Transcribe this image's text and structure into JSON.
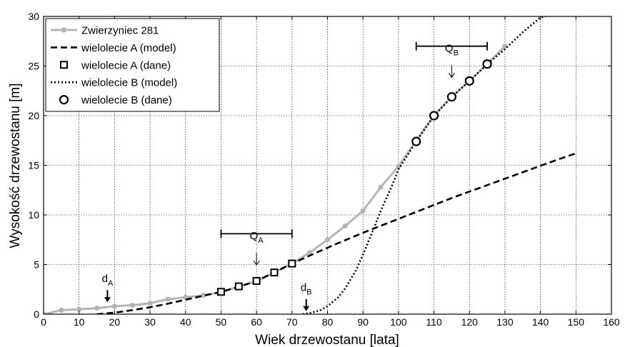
{
  "chart_data": {
    "type": "line",
    "xlabel": "Wiek drzewostanu [lata]",
    "ylabel": "Wysokość drzewostanu [m]",
    "xlim": [
      0,
      160
    ],
    "ylim": [
      0,
      30
    ],
    "xticks": [
      0,
      10,
      20,
      30,
      40,
      50,
      60,
      70,
      80,
      90,
      100,
      110,
      120,
      130,
      140,
      150,
      160
    ],
    "yticks": [
      0,
      5,
      10,
      15,
      20,
      25,
      30
    ],
    "grid": true,
    "legend_position": "top-left",
    "series": [
      {
        "name": "Zwierzyniec 281",
        "style": "solid-gray-dots",
        "color": "#b4b4b4",
        "x": [
          0,
          5,
          10,
          15,
          20,
          25,
          30,
          35,
          40,
          45,
          50,
          55,
          60,
          65,
          70,
          75,
          80,
          85,
          90,
          95,
          100,
          105,
          110,
          115,
          120,
          125,
          130
        ],
        "y": [
          0,
          0.4,
          0.5,
          0.6,
          0.8,
          0.9,
          1.1,
          1.5,
          1.7,
          1.9,
          2.2,
          2.8,
          3.3,
          4.2,
          5.1,
          6.2,
          7.5,
          8.9,
          10.4,
          12.8,
          14.9,
          17.5,
          20.0,
          21.9,
          23.5,
          25.2,
          27.0
        ]
      },
      {
        "name": "wielolecie A (model)",
        "style": "dashed",
        "color": "#000000",
        "x": [
          15,
          20,
          25,
          30,
          35,
          40,
          45,
          50,
          55,
          60,
          65,
          70,
          75,
          80,
          85,
          90,
          95,
          100,
          105,
          110,
          115,
          120,
          125,
          130,
          135,
          140,
          145,
          150
        ],
        "y": [
          0,
          0.15,
          0.4,
          0.7,
          1.05,
          1.45,
          1.85,
          2.25,
          2.75,
          3.35,
          4.2,
          5.1,
          5.9,
          6.7,
          7.45,
          8.2,
          8.9,
          9.6,
          10.3,
          11.0,
          11.7,
          12.35,
          13.0,
          13.65,
          14.3,
          14.95,
          15.6,
          16.2
        ]
      },
      {
        "name": "wielolecie A (dane)",
        "style": "square-markers",
        "color": "#000000",
        "x": [
          50,
          55,
          60,
          65,
          70
        ],
        "y": [
          2.25,
          2.8,
          3.35,
          4.2,
          5.1
        ]
      },
      {
        "name": "wielolecie B (model)",
        "style": "dotted",
        "color": "#000000",
        "x": [
          73,
          75,
          78,
          80,
          83,
          85,
          88,
          90,
          93,
          95,
          98,
          100,
          105,
          110,
          115,
          120,
          125,
          130,
          135,
          140,
          141.5
        ],
        "y": [
          0,
          0.1,
          0.4,
          0.8,
          1.7,
          2.6,
          4.4,
          6.0,
          8.6,
          10.4,
          12.8,
          14.6,
          17.4,
          20.0,
          21.9,
          23.5,
          25.2,
          26.7,
          28.4,
          29.9,
          30
        ]
      },
      {
        "name": "wielolecie B (dane)",
        "style": "circle-markers",
        "color": "#000000",
        "x": [
          105,
          110,
          115,
          120,
          125
        ],
        "y": [
          17.4,
          20.0,
          21.9,
          23.5,
          25.2
        ]
      }
    ],
    "annotations": [
      {
        "id": "QA",
        "main": "Q",
        "sub": "A",
        "range": [
          50,
          70
        ],
        "range_y": 8.1,
        "arrow_x": 60,
        "label_y": 5.6
      },
      {
        "id": "QB",
        "main": "Q",
        "sub": "B",
        "range": [
          105,
          125
        ],
        "range_y": 27.0,
        "arrow_x": 115,
        "label_y": 24.5
      },
      {
        "id": "dA",
        "main": "d",
        "sub": "A",
        "x": 18,
        "label_y": 2.0
      },
      {
        "id": "dB",
        "main": "d",
        "sub": "B",
        "x": 74,
        "label_y": 1.1
      }
    ]
  }
}
